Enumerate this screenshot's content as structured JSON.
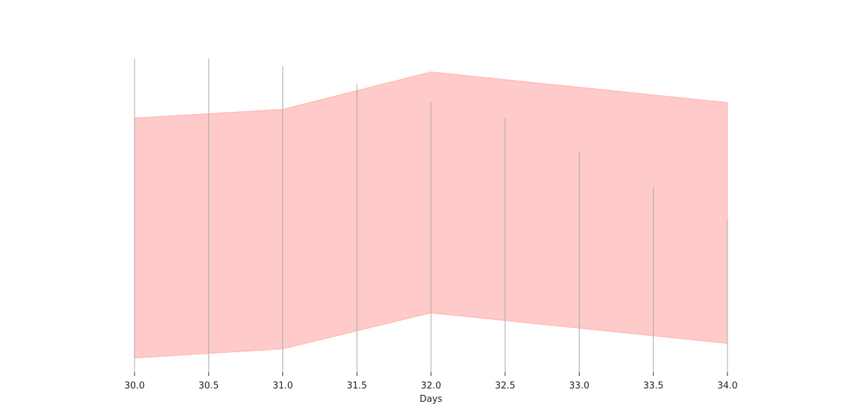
{
  "chart_data": {
    "type": "area",
    "xlabel": "Days",
    "ylabel": "",
    "xlim": [
      30.0,
      34.0
    ],
    "ylim": [
      0,
      1
    ],
    "x_ticks": [
      30.0,
      30.5,
      31.0,
      31.5,
      32.0,
      32.5,
      33.0,
      33.5,
      34.0
    ],
    "x_tick_labels": [
      "30.0",
      "30.5",
      "31.0",
      "31.5",
      "32.0",
      "32.5",
      "33.0",
      "33.5",
      "34.0"
    ],
    "band": {
      "x": [
        30.0,
        31.0,
        32.0,
        34.0
      ],
      "upper": [
        0.79,
        0.817,
        0.933,
        0.838
      ],
      "lower": [
        0.045,
        0.073,
        0.185,
        0.09
      ]
    },
    "vertical_lines": {
      "x": [
        30.0,
        30.5,
        31.0,
        31.5,
        32.0,
        32.5,
        33.0,
        33.5,
        34.0
      ],
      "top": [
        0.975,
        0.975,
        0.95,
        0.895,
        0.84,
        0.79,
        0.685,
        0.576,
        0.475
      ]
    },
    "grid": false,
    "legend": "none",
    "colors": {
      "band_fill": "#ffcaca",
      "band_edge": "#ffb0b0",
      "vline": "#a8a8a8",
      "axis": "#222222"
    }
  }
}
